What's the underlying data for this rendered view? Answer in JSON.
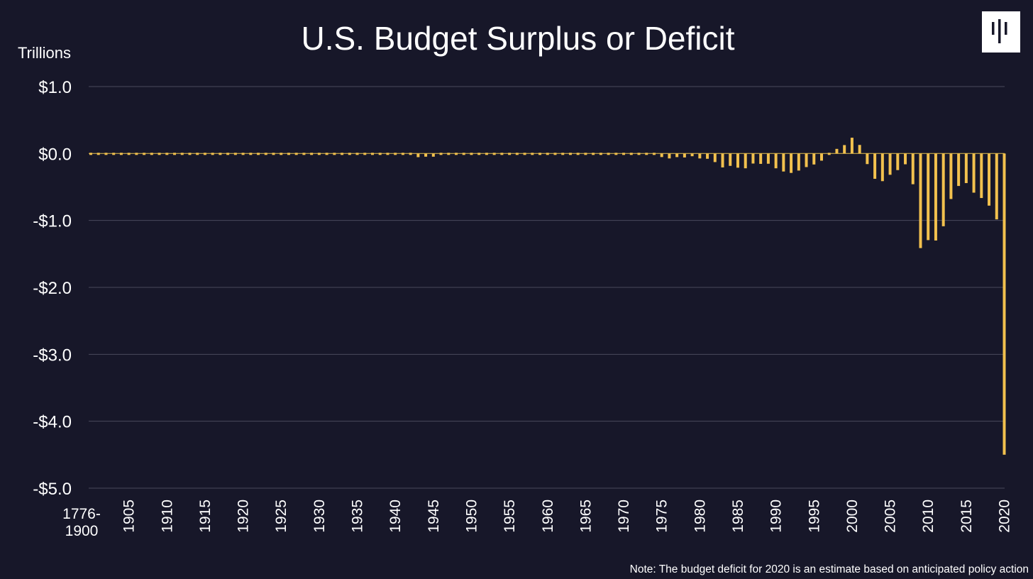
{
  "header": {
    "unit_label": "Trillions",
    "logo_icon": "pgpf-logo-icon"
  },
  "footer": {
    "note": "Note: The budget deficit for 2020 is an estimate based on anticipated policy action"
  },
  "chart_data": {
    "type": "bar",
    "title": "U.S. Budget Surplus or Deficit",
    "xlabel": "",
    "ylabel": "Trillions",
    "ylim": [
      -5.0,
      1.0
    ],
    "grid": true,
    "bar_color": "#f2c14e",
    "background_color": "#171729",
    "y_ticks": [
      {
        "value": 1,
        "label": "$1.0"
      },
      {
        "value": 0,
        "label": "$0.0"
      },
      {
        "value": -1,
        "label": "-$1.0"
      },
      {
        "value": -2,
        "label": "-$2.0"
      },
      {
        "value": -3,
        "label": "-$3.0"
      },
      {
        "value": -4,
        "label": "-$4.0"
      },
      {
        "value": -5,
        "label": "-$5.0"
      }
    ],
    "x_tick_labels": [
      {
        "category": "1776-1900",
        "lines": [
          "1776-",
          "1900"
        ]
      },
      {
        "category": "1905",
        "lines": [
          "1905"
        ]
      },
      {
        "category": "1910",
        "lines": [
          "1910"
        ]
      },
      {
        "category": "1915",
        "lines": [
          "1915"
        ]
      },
      {
        "category": "1920",
        "lines": [
          "1920"
        ]
      },
      {
        "category": "1925",
        "lines": [
          "1925"
        ]
      },
      {
        "category": "1930",
        "lines": [
          "1930"
        ]
      },
      {
        "category": "1935",
        "lines": [
          "1935"
        ]
      },
      {
        "category": "1940",
        "lines": [
          "1940"
        ]
      },
      {
        "category": "1945",
        "lines": [
          "1945"
        ]
      },
      {
        "category": "1950",
        "lines": [
          "1950"
        ]
      },
      {
        "category": "1955",
        "lines": [
          "1955"
        ]
      },
      {
        "category": "1960",
        "lines": [
          "1960"
        ]
      },
      {
        "category": "1965",
        "lines": [
          "1965"
        ]
      },
      {
        "category": "1970",
        "lines": [
          "1970"
        ]
      },
      {
        "category": "1975",
        "lines": [
          "1975"
        ]
      },
      {
        "category": "1980",
        "lines": [
          "1980"
        ]
      },
      {
        "category": "1985",
        "lines": [
          "1985"
        ]
      },
      {
        "category": "1990",
        "lines": [
          "1990"
        ]
      },
      {
        "category": "1995",
        "lines": [
          "1995"
        ]
      },
      {
        "category": "2000",
        "lines": [
          "2000"
        ]
      },
      {
        "category": "2005",
        "lines": [
          "2005"
        ]
      },
      {
        "category": "2010",
        "lines": [
          "2010"
        ]
      },
      {
        "category": "2015",
        "lines": [
          "2015"
        ]
      },
      {
        "category": "2020",
        "lines": [
          "2020"
        ]
      }
    ],
    "categories": [
      "1776-1900",
      "1901",
      "1902",
      "1903",
      "1904",
      "1905",
      "1906",
      "1907",
      "1908",
      "1909",
      "1910",
      "1911",
      "1912",
      "1913",
      "1914",
      "1915",
      "1916",
      "1917",
      "1918",
      "1919",
      "1920",
      "1921",
      "1922",
      "1923",
      "1924",
      "1925",
      "1926",
      "1927",
      "1928",
      "1929",
      "1930",
      "1931",
      "1932",
      "1933",
      "1934",
      "1935",
      "1936",
      "1937",
      "1938",
      "1939",
      "1940",
      "1941",
      "1942",
      "1943",
      "1944",
      "1945",
      "1946",
      "1947",
      "1948",
      "1949",
      "1950",
      "1951",
      "1952",
      "1953",
      "1954",
      "1955",
      "1956",
      "1957",
      "1958",
      "1959",
      "1960",
      "1961",
      "1962",
      "1963",
      "1964",
      "1965",
      "1966",
      "1967",
      "1968",
      "1969",
      "1970",
      "1971",
      "1972",
      "1973",
      "1974",
      "1975",
      "1976",
      "1977",
      "1978",
      "1979",
      "1980",
      "1981",
      "1982",
      "1983",
      "1984",
      "1985",
      "1986",
      "1987",
      "1988",
      "1989",
      "1990",
      "1991",
      "1992",
      "1993",
      "1994",
      "1995",
      "1996",
      "1997",
      "1998",
      "1999",
      "2000",
      "2001",
      "2002",
      "2003",
      "2004",
      "2005",
      "2006",
      "2007",
      "2008",
      "2009",
      "2010",
      "2011",
      "2012",
      "2013",
      "2014",
      "2015",
      "2016",
      "2017",
      "2018",
      "2019",
      "2020"
    ],
    "values": [
      0.0,
      0.0,
      0.0,
      0.0,
      0.0,
      0.0,
      0.0,
      0.0,
      0.0,
      0.0,
      0.0,
      0.0,
      0.0,
      0.0,
      0.0,
      0.0,
      0.0,
      -0.001,
      -0.009,
      -0.013,
      0.0003,
      0.0005,
      0.0007,
      0.0007,
      0.001,
      0.0007,
      0.0009,
      0.001,
      0.0007,
      0.0007,
      0.0007,
      -0.0005,
      -0.0027,
      -0.0026,
      -0.0036,
      -0.0028,
      -0.0044,
      -0.0028,
      -0.0001,
      -0.0028,
      -0.0029,
      -0.0049,
      -0.0205,
      -0.0546,
      -0.0476,
      -0.0477,
      -0.0159,
      0.004,
      0.0118,
      0.0006,
      -0.0031,
      0.0061,
      -0.0015,
      -0.0065,
      -0.0012,
      -0.003,
      0.0039,
      0.0034,
      -0.0028,
      -0.0128,
      0.0003,
      -0.0033,
      -0.0071,
      -0.0048,
      -0.0059,
      -0.0014,
      -0.0037,
      -0.0086,
      -0.0252,
      0.0032,
      -0.0028,
      -0.023,
      -0.0234,
      -0.0149,
      -0.0061,
      -0.0532,
      -0.0737,
      -0.0537,
      -0.059,
      -0.0407,
      -0.0738,
      -0.079,
      -0.128,
      -0.208,
      -0.185,
      -0.212,
      -0.221,
      -0.15,
      -0.155,
      -0.153,
      -0.221,
      -0.269,
      -0.29,
      -0.255,
      -0.203,
      -0.164,
      -0.107,
      -0.022,
      0.069,
      0.126,
      0.236,
      0.128,
      -0.158,
      -0.378,
      -0.413,
      -0.318,
      -0.248,
      -0.161,
      -0.459,
      -1.413,
      -1.294,
      -1.3,
      -1.087,
      -0.68,
      -0.485,
      -0.442,
      -0.585,
      -0.665,
      -0.779,
      -0.984,
      -4.5
    ]
  }
}
